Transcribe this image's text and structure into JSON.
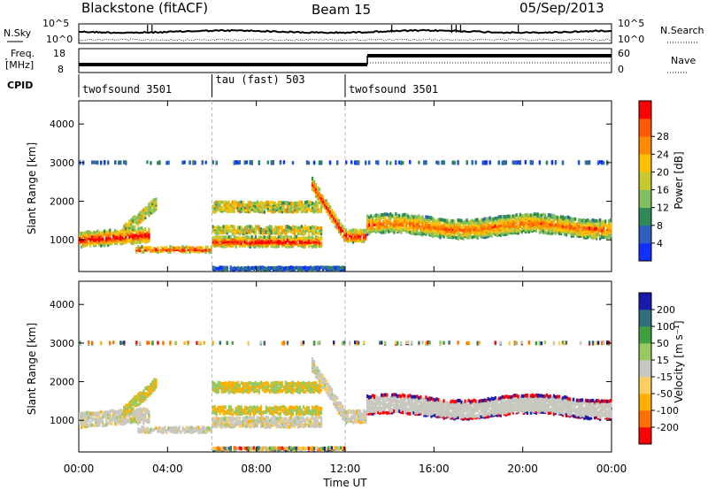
{
  "header": {
    "station": "Blackstone (fitACF)",
    "beam": "Beam 15",
    "date": "05/Sep/2013"
  },
  "top_panels": {
    "nsky_label": "N.Sky",
    "nsky_ticks": [
      "10^5",
      "10^0"
    ],
    "nsearch_label": "N.Search",
    "nsearch_ticks": [
      "10^5",
      "10^0"
    ],
    "freq_label_1": "Freq.",
    "freq_label_2": "[MHz]",
    "freq_ticks": [
      "18",
      "8"
    ],
    "nave_label": "Nave",
    "nave_ticks": [
      "60",
      "0"
    ],
    "cpid_label": "CPID"
  },
  "cpid_segments": [
    {
      "label": "twofsound 3501",
      "start_h": 0
    },
    {
      "label": "tau (fast) 503",
      "start_h": 6
    },
    {
      "label": "twofsound 3501",
      "start_h": 12
    }
  ],
  "colors": {
    "power": [
      "#1030ff",
      "#2f5fbf",
      "#2e8b57",
      "#7fbf5f",
      "#c8c832",
      "#ffc000",
      "#ff8c00",
      "#ff5a00",
      "#ff0000"
    ],
    "velocity": [
      "#ff0000",
      "#ff7000",
      "#ffb000",
      "#ffd060",
      "#c8c8c0",
      "#98c860",
      "#40a040",
      "#2f6f7f",
      "#1a1aaa"
    ]
  },
  "chart_data": [
    {
      "type": "heatmap",
      "name": "power",
      "ylabel": "Slant Range [km]",
      "yticks": [
        1000,
        2000,
        3000,
        4000
      ],
      "ylim": [
        180,
        4600
      ],
      "xlim": [
        0,
        24
      ],
      "colorbar_label": "Power [dB]",
      "colorbar_ticks": [
        4,
        8,
        12,
        16,
        20,
        24,
        28
      ],
      "clim": [
        0,
        32
      ]
    },
    {
      "type": "heatmap",
      "name": "velocity",
      "ylabel": "Slant Range [km]",
      "yticks": [
        1000,
        2000,
        3000,
        4000
      ],
      "ylim": [
        180,
        4600
      ],
      "xlim": [
        0,
        24
      ],
      "colorbar_label": "Velocity [m s⁻¹]",
      "colorbar_ticks": [
        -200,
        -100,
        -50,
        -15,
        15,
        50,
        100,
        200
      ]
    }
  ],
  "xaxis": {
    "label": "Time UT",
    "ticks": [
      "00:00",
      "04:00",
      "08:00",
      "12:00",
      "16:00",
      "20:00",
      "00:00"
    ]
  }
}
